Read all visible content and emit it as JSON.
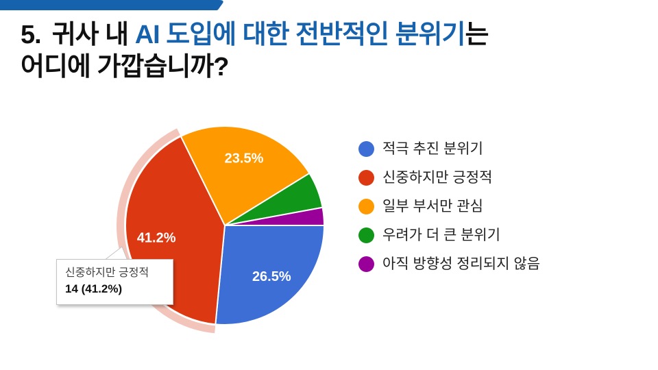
{
  "theme": {
    "accent_color": "#1662ad",
    "background": "#ffffff"
  },
  "title": {
    "number": "5.",
    "segment_black1": "귀사 내 ",
    "segment_highlight": "AI 도입에 대한 전반적인 분위기",
    "segment_black2": "는",
    "line2": "어디에 가깝습니까?",
    "highlight_color": "#1662ad"
  },
  "chart_data": {
    "type": "pie",
    "title": "",
    "categories": [
      "적극 추진 분위기",
      "신중하지만 긍정적",
      "일부 부서만 관심",
      "우려가 더 큰 분위기",
      "아직 방향성 정리되지 않음"
    ],
    "values": [
      9,
      14,
      8,
      2,
      1
    ],
    "total_responses": 34,
    "percentages": [
      26.5,
      41.2,
      23.5,
      5.9,
      2.9
    ],
    "percent_labels_visible": [
      true,
      true,
      true,
      false,
      false
    ],
    "colors": [
      "#3c6ed5",
      "#dc3912",
      "#ff9900",
      "#109618",
      "#990099"
    ],
    "start_angle_deg": 90,
    "direction": "clockwise",
    "legend_position": "right",
    "highlighted_category": "신중하지만 긍정적",
    "highlight_ring_color": "#f2c4ba"
  },
  "tooltip": {
    "label": "신중하지만 긍정적",
    "value": "14 (41.2%)"
  }
}
